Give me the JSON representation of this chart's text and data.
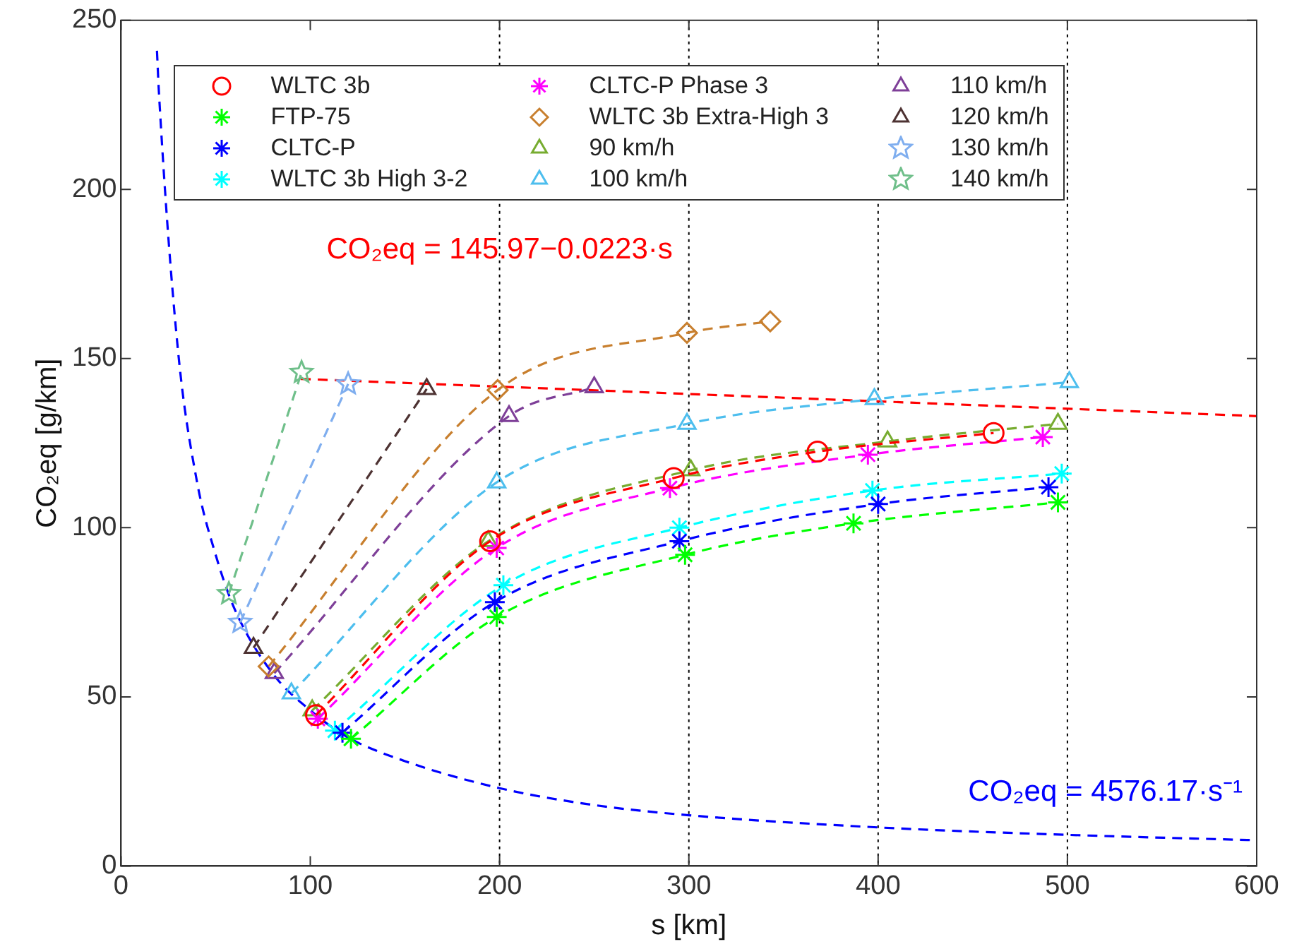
{
  "chart_data": {
    "type": "line",
    "xlabel": "s [km]",
    "ylabel": "CO₂eq [g/km]",
    "xlim": [
      0,
      600
    ],
    "ylim": [
      0,
      250
    ],
    "xticks": [
      0,
      100,
      200,
      300,
      400,
      500,
      600
    ],
    "yticks": [
      0,
      50,
      100,
      150,
      200,
      250
    ],
    "grid": false,
    "legend": "top",
    "line_style": "dashed",
    "series": [
      {
        "name": "WLTC 3b",
        "color": "#ff0000",
        "marker": "circle",
        "x": [
          103,
          195,
          292,
          368,
          461
        ],
        "values": [
          44.6,
          96,
          114.7,
          122.5,
          128
        ]
      },
      {
        "name": "FTP-75",
        "color": "#00ff00",
        "marker": "cross",
        "x": [
          121.5,
          198.5,
          298,
          387,
          495
        ],
        "values": [
          37.6,
          73.6,
          92,
          101.3,
          107.5
        ]
      },
      {
        "name": "CLTC-P",
        "color": "#0000ff",
        "marker": "cross",
        "x": [
          117,
          197.5,
          295,
          400,
          490
        ],
        "values": [
          39.4,
          78,
          96,
          107,
          112
        ]
      },
      {
        "name": "WLTC 3b High 3-2",
        "color": "#00ffff",
        "marker": "cross",
        "x": [
          113,
          202,
          295,
          397,
          497
        ],
        "values": [
          40,
          83,
          100,
          111,
          116
        ]
      },
      {
        "name": "CLTC-P Phase 3",
        "color": "#ff00ff",
        "marker": "cross",
        "x": [
          104,
          198.5,
          290,
          394.6,
          487
        ],
        "values": [
          43.5,
          94,
          111.7,
          121.6,
          126.8
        ]
      },
      {
        "name": "WLTC 3b Extra-High 3",
        "color": "#c87f2e",
        "marker": "diamond",
        "x": [
          78,
          199,
          299,
          343
        ],
        "values": [
          59,
          140.7,
          157.6,
          161
        ]
      },
      {
        "name": "90 km/h",
        "color": "#77ac30",
        "marker": "triangle",
        "x": [
          101,
          194,
          301,
          405,
          495
        ],
        "values": [
          46,
          96,
          117,
          125.5,
          130.7
        ]
      },
      {
        "name": "100 km/h",
        "color": "#4dbeee",
        "marker": "triangle",
        "x": [
          90,
          198.5,
          299,
          398,
          501
        ],
        "values": [
          51,
          113.4,
          130.7,
          138,
          143
        ]
      },
      {
        "name": "110 km/h",
        "color": "#7e3f98",
        "marker": "triangle",
        "x": [
          81,
          205,
          250
        ],
        "values": [
          57,
          133,
          141.5
        ]
      },
      {
        "name": "120 km/h",
        "color": "#4d3232",
        "marker": "triangle",
        "x": [
          70,
          161.5
        ],
        "values": [
          64.5,
          141
        ]
      },
      {
        "name": "130 km/h",
        "color": "#7faeef",
        "marker": "star",
        "x": [
          63,
          120
        ],
        "values": [
          72,
          142.5
        ]
      },
      {
        "name": "140 km/h",
        "color": "#6fbf8a",
        "marker": "star",
        "x": [
          57,
          95.4
        ],
        "values": [
          80.5,
          145.9
        ]
      },
      {
        "type": "line",
        "color": "#ff0000",
        "marker": "none",
        "x": [
          95,
          600
        ],
        "values": [
          144,
          133
        ]
      },
      {
        "type": "line",
        "color": "#0000ff",
        "marker": "none",
        "x": [
          19,
          20,
          30,
          40,
          50,
          60,
          80,
          100,
          120,
          150,
          200,
          250,
          300,
          400,
          500,
          600
        ],
        "values": [
          241,
          229,
          153,
          114,
          92,
          76,
          57,
          46,
          38,
          31,
          23,
          18,
          15,
          11.4,
          9.2,
          7.6
        ]
      }
    ],
    "ref_lines": [
      {
        "axis": "x",
        "value": 200,
        "color": "#000000",
        "line_style": "dotted"
      },
      {
        "axis": "x",
        "value": 300,
        "color": "#000000",
        "line_style": "dotted"
      },
      {
        "axis": "x",
        "value": 400,
        "color": "#000000",
        "line_style": "dotted"
      },
      {
        "axis": "x",
        "value": 500,
        "color": "#000000",
        "line_style": "dotted"
      }
    ],
    "annotations": [
      {
        "text": "CO₂eq = 145.97−0.0223·s",
        "x": 200,
        "y": 182
      },
      "CO₂eq = 4576.17·s⁻¹"
    ]
  }
}
